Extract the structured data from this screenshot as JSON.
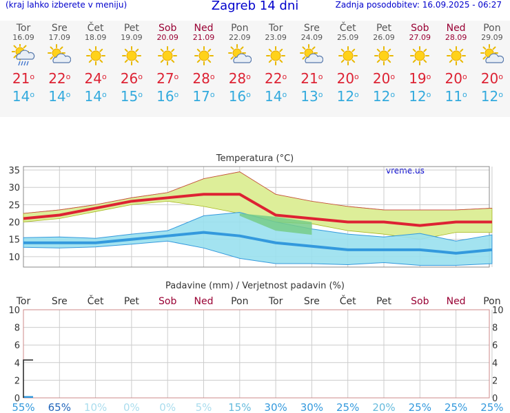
{
  "header": {
    "hint": "(kraj lahko izberete v meniju)",
    "title": "Zagreb 14 dni",
    "updated": "Zadnja posodobitev: 16.09.2025 - 06:27"
  },
  "colors": {
    "max": "#dd2233",
    "min": "#33aadd",
    "weekend": "#990033",
    "mean_line": "#3399dd",
    "band_fill": "#99e0ee",
    "yellow_band": "#ddee99"
  },
  "days": [
    {
      "name": "Tor",
      "date": "16.09",
      "icon": "sun-cloud-rain-icon",
      "max": "21",
      "min": "14",
      "weekend": false
    },
    {
      "name": "Sre",
      "date": "17.09",
      "icon": "sun-cloud-icon",
      "max": "22",
      "min": "14",
      "weekend": false
    },
    {
      "name": "Čet",
      "date": "18.09",
      "icon": "sun-icon",
      "max": "24",
      "min": "14",
      "weekend": false
    },
    {
      "name": "Pet",
      "date": "19.09",
      "icon": "sun-icon",
      "max": "26",
      "min": "15",
      "weekend": false
    },
    {
      "name": "Sob",
      "date": "20.09",
      "icon": "sun-icon",
      "max": "27",
      "min": "16",
      "weekend": true
    },
    {
      "name": "Ned",
      "date": "21.09",
      "icon": "sun-icon",
      "max": "28",
      "min": "17",
      "weekend": true
    },
    {
      "name": "Pon",
      "date": "22.09",
      "icon": "sun-cloud-icon",
      "max": "28",
      "min": "16",
      "weekend": false
    },
    {
      "name": "Tor",
      "date": "23.09",
      "icon": "sun-icon",
      "max": "22",
      "min": "14",
      "weekend": false
    },
    {
      "name": "Sre",
      "date": "24.09",
      "icon": "sun-cloud-icon",
      "max": "21",
      "min": "13",
      "weekend": false
    },
    {
      "name": "Čet",
      "date": "25.09",
      "icon": "sun-icon",
      "max": "20",
      "min": "12",
      "weekend": false
    },
    {
      "name": "Pet",
      "date": "26.09",
      "icon": "sun-icon",
      "max": "20",
      "min": "12",
      "weekend": false
    },
    {
      "name": "Sob",
      "date": "27.09",
      "icon": "sun-icon",
      "max": "19",
      "min": "12",
      "weekend": true
    },
    {
      "name": "Ned",
      "date": "28.09",
      "icon": "sun-icon",
      "max": "20",
      "min": "11",
      "weekend": true
    },
    {
      "name": "Pon",
      "date": "29.09",
      "icon": "sun-cloud-icon",
      "max": "20",
      "min": "12",
      "weekend": false
    }
  ],
  "degree_symbol": "o",
  "chart_data": [
    {
      "type": "area",
      "title": "Temperatura (°C)",
      "watermark": "vreme.us",
      "categories": [
        "Tor",
        "Sre",
        "Čet",
        "Pet",
        "Sob",
        "Ned",
        "Pon",
        "Tor",
        "Sre",
        "Čet",
        "Pet",
        "Sob",
        "Ned",
        "Pon"
      ],
      "ylim": [
        7,
        36
      ],
      "yticks": [
        10,
        15,
        20,
        25,
        30,
        35
      ],
      "grid": true,
      "series": [
        {
          "name": "max",
          "values": [
            21,
            22,
            24,
            26,
            27,
            28,
            28,
            22,
            21,
            20,
            20,
            19,
            20,
            20
          ]
        },
        {
          "name": "min",
          "values": [
            14,
            14,
            14,
            15,
            16,
            17,
            16,
            14,
            13,
            12,
            12,
            12,
            11,
            12
          ]
        }
      ],
      "max_band": {
        "upper": [
          22.5,
          23.5,
          25,
          27,
          28.5,
          32.5,
          34.5,
          28,
          26,
          24.5,
          23.5,
          23.5,
          23.5,
          24
        ],
        "lower": [
          20,
          21,
          23,
          25,
          26,
          24.5,
          22.5,
          20,
          19.5,
          17.5,
          16.5,
          15,
          17,
          17
        ]
      },
      "min_band": {
        "upper": [
          15.5,
          15.7,
          15.3,
          16.5,
          17.5,
          21.8,
          22.8,
          20,
          18,
          16.5,
          15.7,
          16.7,
          14.5,
          16.3
        ],
        "lower": [
          12.7,
          12.5,
          12.8,
          13.6,
          14.5,
          12.5,
          9.5,
          8,
          8,
          7.7,
          8.3,
          7.5,
          7.5,
          8
        ]
      },
      "green_overlap": {
        "upper": [
          22.5,
          21.5,
          20
        ],
        "lower": [
          21.8,
          17.5,
          16.3
        ]
      }
    },
    {
      "type": "bar",
      "title": "Padavine (mm) / Verjetnost padavin (%)",
      "categories": [
        "Tor",
        "Sre",
        "Čet",
        "Pet",
        "Sob",
        "Ned",
        "Pon",
        "Tor",
        "Sre",
        "Čet",
        "Pet",
        "Sob",
        "Ned",
        "Pon"
      ],
      "ylim": [
        0,
        10
      ],
      "yticks": [
        0,
        2,
        4,
        6,
        8,
        10
      ],
      "grid": true,
      "precip_mm": [
        0.2,
        0,
        0,
        0,
        0,
        0,
        0,
        0,
        0,
        0,
        0,
        0,
        0,
        0
      ],
      "probability": [
        "55%",
        "65%",
        "10%",
        "0%",
        "0%",
        "5%",
        "15%",
        "30%",
        "30%",
        "25%",
        "20%",
        "25%",
        "25%",
        "25%"
      ],
      "probability_colors": [
        "#3399dd",
        "#2266bb",
        "#aaddee",
        "#aaddee",
        "#aaddee",
        "#aaddee",
        "#66bbdd",
        "#3399dd",
        "#3399dd",
        "#3399dd",
        "#66bbdd",
        "#3399dd",
        "#3399dd",
        "#3399dd"
      ],
      "accumulated_marker": 4.3
    }
  ]
}
